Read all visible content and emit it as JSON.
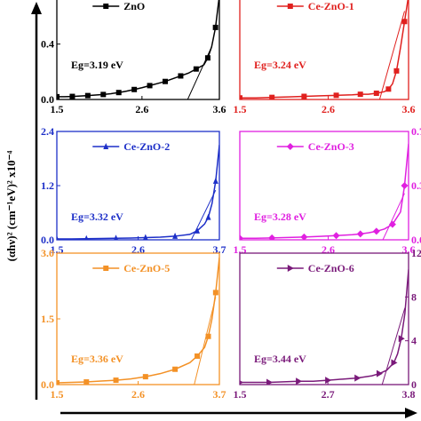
{
  "figure": {
    "ylabel": "(αhν)² (cm⁻¹eV)² x10⁻⁴"
  },
  "chart_data": [
    {
      "type": "line",
      "series": [
        {
          "name": "ZnO",
          "color": "#000000",
          "marker": "square",
          "x": [
            1.5,
            1.6,
            1.7,
            1.8,
            1.9,
            2.0,
            2.1,
            2.2,
            2.3,
            2.4,
            2.5,
            2.6,
            2.7,
            2.8,
            2.9,
            3.0,
            3.1,
            3.2,
            3.3,
            3.4,
            3.45,
            3.5,
            3.55,
            3.6
          ],
          "y": [
            0.02,
            0.02,
            0.022,
            0.025,
            0.028,
            0.032,
            0.036,
            0.042,
            0.05,
            0.06,
            0.072,
            0.085,
            0.1,
            0.115,
            0.13,
            0.15,
            0.17,
            0.19,
            0.22,
            0.25,
            0.3,
            0.38,
            0.52,
            0.75
          ]
        }
      ],
      "x_ticks": [
        "1.5",
        "2.6",
        "3.6"
      ],
      "xlim": [
        1.5,
        3.6
      ],
      "y_ticks_left": [
        "0.0",
        "0.4"
      ],
      "ylim": [
        0,
        0.75
      ],
      "annotation": "Eg=3.19 eV",
      "tangent": {
        "x": [
          3.19,
          3.5
        ],
        "y": [
          0,
          0.38
        ]
      }
    },
    {
      "type": "line",
      "series": [
        {
          "name": "Ce-ZnO-1",
          "color": "#e0201e",
          "marker": "square",
          "x": [
            1.5,
            1.7,
            1.9,
            2.1,
            2.3,
            2.5,
            2.7,
            2.9,
            3.0,
            3.1,
            3.2,
            3.3,
            3.35,
            3.4,
            3.45,
            3.5,
            3.55,
            3.6
          ],
          "y": [
            0.3,
            0.3,
            0.4,
            0.5,
            0.6,
            0.7,
            0.8,
            0.9,
            1.0,
            1.0,
            1.2,
            1.5,
            2.0,
            3.0,
            5.5,
            10.0,
            15.0,
            20.0
          ]
        }
      ],
      "x_ticks": [
        "1.5",
        "2.6",
        "3.6"
      ],
      "xlim": [
        1.5,
        3.6
      ],
      "y_ticks_right": [],
      "ylim": [
        0,
        20
      ],
      "annotation": "Eg=3.24 eV",
      "tangent": {
        "x": [
          3.24,
          3.55
        ],
        "y": [
          0,
          17
        ]
      }
    },
    {
      "type": "line",
      "series": [
        {
          "name": "Ce-ZnO-2",
          "color": "#1d2fc8",
          "marker": "triangle",
          "x": [
            1.5,
            1.7,
            1.9,
            2.1,
            2.3,
            2.5,
            2.7,
            2.9,
            3.1,
            3.3,
            3.4,
            3.5,
            3.55,
            3.6,
            3.65,
            3.7
          ],
          "y": [
            0.02,
            0.02,
            0.025,
            0.03,
            0.035,
            0.04,
            0.05,
            0.06,
            0.08,
            0.12,
            0.2,
            0.35,
            0.5,
            0.8,
            1.3,
            2.1
          ]
        }
      ],
      "x_ticks": [
        "1.5",
        "2.6",
        "3.7"
      ],
      "xlim": [
        1.5,
        3.7
      ],
      "y_ticks_left": [
        "0.0",
        "1.2",
        "2.4"
      ],
      "ylim": [
        0,
        2.4
      ],
      "annotation": "Eg=3.32 eV",
      "tangent": {
        "x": [
          3.32,
          3.65
        ],
        "y": [
          0,
          1.1
        ]
      }
    },
    {
      "type": "line",
      "series": [
        {
          "name": "Ce-ZnO-3",
          "color": "#e020e0",
          "marker": "diamond",
          "x": [
            1.5,
            1.7,
            1.9,
            2.1,
            2.3,
            2.5,
            2.7,
            2.9,
            3.0,
            3.1,
            3.2,
            3.3,
            3.4,
            3.5,
            3.55,
            3.6
          ],
          "y": [
            0.01,
            0.01,
            0.012,
            0.015,
            0.018,
            0.022,
            0.027,
            0.033,
            0.038,
            0.045,
            0.055,
            0.07,
            0.1,
            0.18,
            0.35,
            0.62
          ]
        }
      ],
      "x_ticks": [
        "1.5",
        "2.6",
        "3.6"
      ],
      "xlim": [
        1.5,
        3.6
      ],
      "y_ticks_right": [
        "0.00",
        "0.35",
        "0.70"
      ],
      "ylim": [
        0,
        0.7
      ],
      "annotation": "Eg=3.28 eV",
      "tangent": {
        "x": [
          3.28,
          3.55
        ],
        "y": [
          0,
          0.3
        ]
      }
    },
    {
      "type": "line",
      "series": [
        {
          "name": "Ce-ZnO-5",
          "color": "#f39126",
          "marker": "square",
          "x": [
            1.5,
            1.7,
            1.9,
            2.1,
            2.3,
            2.5,
            2.7,
            2.9,
            3.1,
            3.3,
            3.4,
            3.5,
            3.55,
            3.6,
            3.65,
            3.7
          ],
          "y": [
            0.04,
            0.05,
            0.06,
            0.08,
            0.1,
            0.13,
            0.18,
            0.25,
            0.35,
            0.5,
            0.65,
            0.85,
            1.1,
            1.5,
            2.1,
            2.9
          ]
        }
      ],
      "x_ticks": [
        "1.5",
        "2.6",
        "3.7"
      ],
      "xlim": [
        1.5,
        3.7
      ],
      "y_ticks_left": [
        "0.0",
        "1.5",
        "3.0"
      ],
      "ylim": [
        0,
        3.0
      ],
      "annotation": "Eg=3.36 eV",
      "tangent": {
        "x": [
          3.36,
          3.65
        ],
        "y": [
          0,
          2.0
        ]
      }
    },
    {
      "type": "line",
      "series": [
        {
          "name": "Ce-ZnO-6",
          "color": "#7a1a7a",
          "marker": "triangle-right",
          "x": [
            1.5,
            1.7,
            1.9,
            2.1,
            2.3,
            2.5,
            2.7,
            2.9,
            3.1,
            3.3,
            3.4,
            3.5,
            3.6,
            3.65,
            3.7,
            3.75,
            3.8
          ],
          "y": [
            0.2,
            0.2,
            0.2,
            0.25,
            0.3,
            0.3,
            0.4,
            0.5,
            0.6,
            0.8,
            1.0,
            1.3,
            2.0,
            2.8,
            4.2,
            6.5,
            10.5
          ]
        }
      ],
      "x_ticks": [
        "1.5",
        "2.7",
        "3.8"
      ],
      "xlim": [
        1.5,
        3.8
      ],
      "y_ticks_right": [
        "0",
        "4",
        "8",
        "12"
      ],
      "ylim": [
        0,
        12
      ],
      "annotation": "Eg=3.44 eV",
      "tangent": {
        "x": [
          3.44,
          3.75
        ],
        "y": [
          0,
          7.0
        ]
      }
    }
  ]
}
